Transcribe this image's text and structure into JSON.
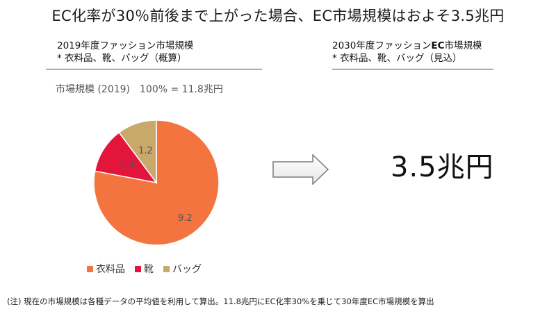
{
  "title": "EC化率が30％前後まで上がった場合、EC市場規模はおよそ3.5兆円",
  "left_header": {
    "line1": "2019年度ファッション市場規模",
    "line2": "* 衣料品、靴、バッグ（概算）"
  },
  "right_header": {
    "line1_pre": "2030年度ファッション",
    "line1_bold": "EC",
    "line1_post": "市場規模",
    "line2": "* 衣料品、靴、バッグ（見込）"
  },
  "chart_subtitle": "市場規模 (2019)　100% = 11.8兆円",
  "big_value": "3.5兆円",
  "footnote": "(注) 現在の市場規模は各種データの平均値を利用して算出。11.8兆円にEC化率30%を乗じて30年度EC市場規模を算出",
  "icons": {
    "arrow": "right-arrow-icon"
  },
  "chart_data": {
    "type": "pie",
    "title": "市場規模 (2019)　100% = 11.8兆円",
    "categories": [
      "衣料品",
      "靴",
      "バッグ"
    ],
    "values": [
      9.2,
      1.4,
      1.2
    ],
    "colors": [
      "#f4743f",
      "#e3153b",
      "#c9a96a"
    ],
    "data_labels": [
      "9.2",
      "1.4",
      "1.2"
    ],
    "legend_placement": "bottom"
  }
}
